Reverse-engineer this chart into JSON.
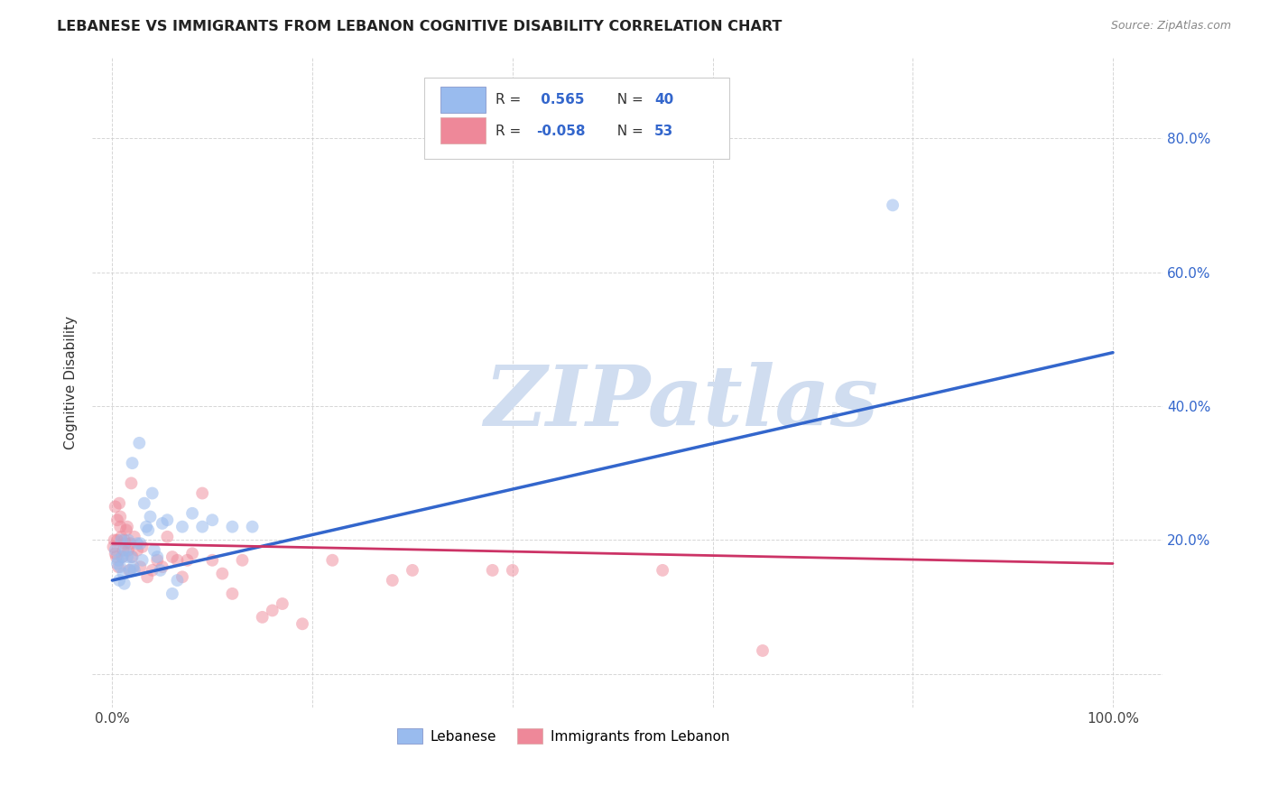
{
  "title": "LEBANESE VS IMMIGRANTS FROM LEBANON COGNITIVE DISABILITY CORRELATION CHART",
  "source": "Source: ZipAtlas.com",
  "ylabel": "Cognitive Disability",
  "xlim": [
    -0.02,
    1.05
  ],
  "ylim": [
    -0.05,
    0.92
  ],
  "blue_line_color": "#3366cc",
  "pink_line_color": "#cc3366",
  "blue_scatter_color": "#99bbee",
  "pink_scatter_color": "#ee8899",
  "background_color": "#ffffff",
  "grid_color": "#cccccc",
  "blue_scatter_x": [
    0.003,
    0.005,
    0.006,
    0.007,
    0.008,
    0.009,
    0.01,
    0.011,
    0.012,
    0.013,
    0.015,
    0.016,
    0.018,
    0.019,
    0.02,
    0.021,
    0.022,
    0.025,
    0.027,
    0.028,
    0.03,
    0.032,
    0.034,
    0.036,
    0.038,
    0.04,
    0.042,
    0.045,
    0.048,
    0.05,
    0.055,
    0.06,
    0.065,
    0.07,
    0.08,
    0.09,
    0.1,
    0.12,
    0.14,
    0.78
  ],
  "blue_scatter_y": [
    0.185,
    0.165,
    0.17,
    0.14,
    0.16,
    0.2,
    0.175,
    0.15,
    0.135,
    0.185,
    0.175,
    0.2,
    0.155,
    0.175,
    0.315,
    0.16,
    0.155,
    0.195,
    0.345,
    0.195,
    0.17,
    0.255,
    0.22,
    0.215,
    0.235,
    0.27,
    0.185,
    0.175,
    0.155,
    0.225,
    0.23,
    0.12,
    0.14,
    0.22,
    0.24,
    0.22,
    0.23,
    0.22,
    0.22,
    0.7
  ],
  "pink_scatter_x": [
    0.001,
    0.002,
    0.003,
    0.003,
    0.004,
    0.005,
    0.005,
    0.006,
    0.007,
    0.008,
    0.008,
    0.009,
    0.01,
    0.011,
    0.012,
    0.013,
    0.014,
    0.015,
    0.016,
    0.017,
    0.018,
    0.019,
    0.02,
    0.022,
    0.025,
    0.028,
    0.03,
    0.035,
    0.04,
    0.045,
    0.05,
    0.055,
    0.06,
    0.065,
    0.07,
    0.075,
    0.08,
    0.09,
    0.1,
    0.11,
    0.12,
    0.13,
    0.15,
    0.16,
    0.17,
    0.19,
    0.22,
    0.28,
    0.3,
    0.38,
    0.4,
    0.55,
    0.65
  ],
  "pink_scatter_y": [
    0.19,
    0.2,
    0.18,
    0.25,
    0.175,
    0.2,
    0.23,
    0.16,
    0.255,
    0.235,
    0.22,
    0.205,
    0.175,
    0.185,
    0.2,
    0.195,
    0.215,
    0.22,
    0.185,
    0.155,
    0.195,
    0.285,
    0.175,
    0.205,
    0.185,
    0.16,
    0.19,
    0.145,
    0.155,
    0.17,
    0.16,
    0.205,
    0.175,
    0.17,
    0.145,
    0.17,
    0.18,
    0.27,
    0.17,
    0.15,
    0.12,
    0.17,
    0.085,
    0.095,
    0.105,
    0.075,
    0.17,
    0.14,
    0.155,
    0.155,
    0.155,
    0.155,
    0.035
  ],
  "blue_line_x": [
    0.0,
    1.0
  ],
  "blue_line_y": [
    0.14,
    0.48
  ],
  "pink_line_x": [
    0.0,
    1.0
  ],
  "pink_line_y": [
    0.195,
    0.165
  ],
  "ytick_positions": [
    0.0,
    0.2,
    0.4,
    0.6,
    0.8
  ],
  "ytick_labels": [
    "",
    "20.0%",
    "40.0%",
    "60.0%",
    "80.0%"
  ],
  "xtick_positions": [
    0.0,
    0.2,
    0.4,
    0.6,
    0.8,
    1.0
  ],
  "xtick_labels": [
    "0.0%",
    "",
    "",
    "",
    "",
    "100.0%"
  ],
  "legend_R_blue": "0.565",
  "legend_N_blue": "40",
  "legend_R_pink": "-0.058",
  "legend_N_pink": "53",
  "watermark_text": "ZIPatlas",
  "watermark_color": "#d0ddf0",
  "scatter_size": 100
}
